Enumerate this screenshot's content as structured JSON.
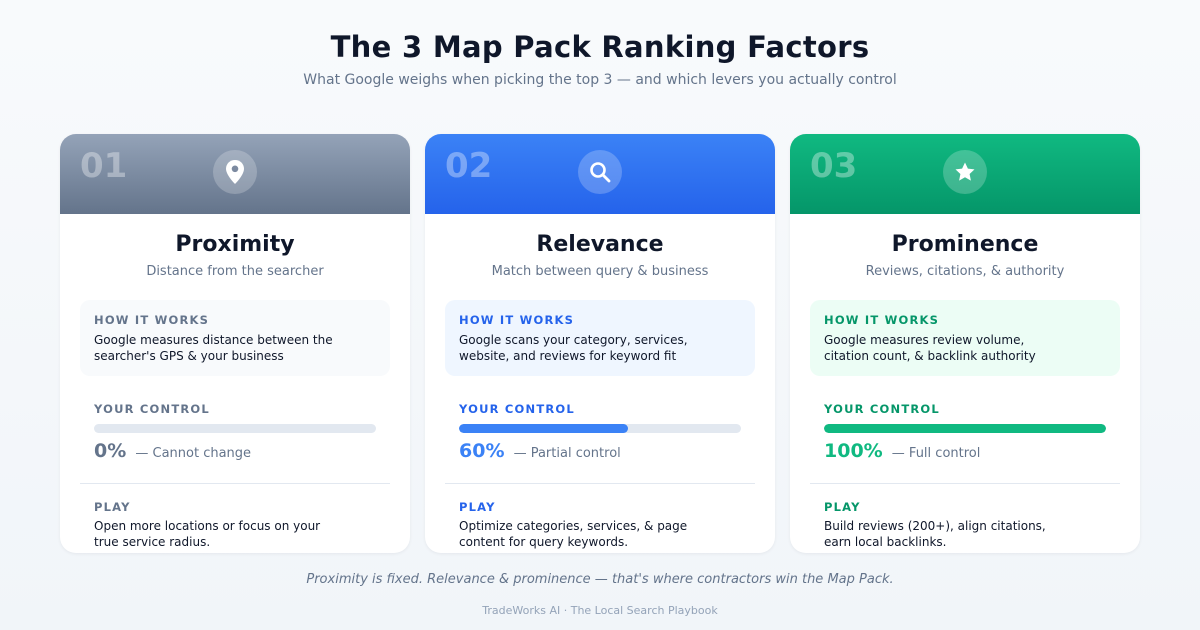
{
  "header": {
    "title": "The 3 Map Pack Ranking Factors",
    "subtitle": "What Google weighs when picking the top 3 — and which levers you actually control"
  },
  "cards": [
    {
      "number": "01",
      "icon": "map-pin-icon",
      "name": "Proximity",
      "description": "Distance from the searcher",
      "how_label": "HOW IT WORKS",
      "how_text": "Google measures distance between the searcher's GPS & your business",
      "control_label": "YOUR CONTROL",
      "control_value": 0,
      "control_percent": "0%",
      "control_note": "— Cannot change",
      "play_label": "PLAY",
      "play_text": "Open more locations or focus on your true service radius."
    },
    {
      "number": "02",
      "icon": "search-icon",
      "name": "Relevance",
      "description": "Match between query & business",
      "how_label": "HOW IT WORKS",
      "how_text": "Google scans your category, services, website, and reviews for keyword fit",
      "control_label": "YOUR CONTROL",
      "control_value": 0.6,
      "control_percent": "60%",
      "control_note": "— Partial control",
      "play_label": "PLAY",
      "play_text": "Optimize categories, services, & page content for query keywords."
    },
    {
      "number": "03",
      "icon": "star-icon",
      "name": "Prominence",
      "description": "Reviews, citations, & authority",
      "how_label": "HOW IT WORKS",
      "how_text": "Google measures review volume, citation count, & backlink authority",
      "control_label": "YOUR CONTROL",
      "control_value": 1.0,
      "control_percent": "100%",
      "control_note": "— Full control",
      "play_label": "PLAY",
      "play_text": "Build reviews (200+), align citations, earn local backlinks."
    }
  ],
  "footer": {
    "note": "Proximity is fixed. Relevance & prominence — that's where contractors win the Map Pack.",
    "brand": "TradeWorks AI · The Local Search Playbook"
  },
  "colors": {
    "proximity": "#64748b",
    "relevance": "#3b82f6",
    "prominence": "#10b981"
  }
}
